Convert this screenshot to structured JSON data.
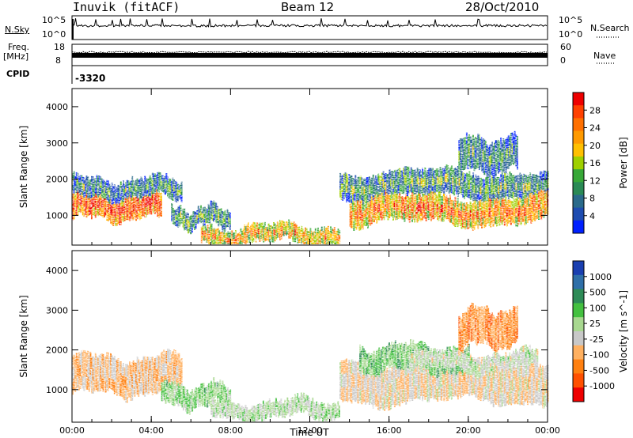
{
  "header": {
    "station": "Inuvik (fitACF)",
    "beam": "Beam 12",
    "date": "28/Oct/2010"
  },
  "strip_panels": {
    "nsky_label": "N.Sky",
    "nsky_ticks": [
      "10^5",
      "10^0"
    ],
    "nsearch_label": "N.Search",
    "freq_label_line1": "Freq.",
    "freq_label_line2": "[MHz]",
    "freq_ticks": [
      "18",
      "8"
    ],
    "nave_label": "Nave",
    "nave_ticks": [
      "60",
      "0"
    ],
    "cpid_label": "CPID",
    "cpid_value": "-3320"
  },
  "x_axis_title": "Time UT",
  "chart_data": [
    {
      "type": "heatmap",
      "quantity": "Power",
      "ylabel": "Slant Range [km]",
      "xlim": [
        "00:00",
        "00:00"
      ],
      "x_tick_labels": [
        "00:00",
        "04:00",
        "08:00",
        "12:00",
        "16:00",
        "20:00",
        "00:00"
      ],
      "ylim": [
        180,
        4500
      ],
      "y_tick_labels": [
        "1000",
        "2000",
        "3000",
        "4000"
      ],
      "colorbar": {
        "label": "Power [dB]",
        "ticks": [
          "28",
          "24",
          "20",
          "16",
          "12",
          "8",
          "4"
        ],
        "colors": [
          "#ee0000",
          "#ff4000",
          "#ff7000",
          "#ff9a00",
          "#ffc000",
          "#9fd000",
          "#38a838",
          "#2a8a55",
          "#2a6a8a",
          "#1e4cb0",
          "#0020ff"
        ]
      },
      "regions": [
        {
          "t_start": 0.0,
          "t_end": 4.5,
          "r_low": 900,
          "r_high": 1600,
          "level_db": 28
        },
        {
          "t_start": 0.0,
          "t_end": 5.5,
          "r_low": 1500,
          "r_high": 2000,
          "level_db": 10
        },
        {
          "t_start": 5.0,
          "t_end": 8.0,
          "r_low": 700,
          "r_high": 1200,
          "level_db": 12
        },
        {
          "t_start": 6.5,
          "t_end": 13.5,
          "r_low": 250,
          "r_high": 700,
          "level_db": 22
        },
        {
          "t_start": 13.5,
          "t_end": 24.0,
          "r_low": 1500,
          "r_high": 2200,
          "level_db": 12
        },
        {
          "t_start": 14.0,
          "t_end": 24.0,
          "r_low": 800,
          "r_high": 1500,
          "level_db": 24
        },
        {
          "t_start": 19.5,
          "t_end": 22.5,
          "r_low": 2200,
          "r_high": 3100,
          "level_db": 10
        }
      ]
    },
    {
      "type": "heatmap",
      "quantity": "Velocity",
      "ylabel": "Slant Range [km]",
      "xlim": [
        "00:00",
        "00:00"
      ],
      "x_tick_labels": [
        "00:00",
        "04:00",
        "08:00",
        "12:00",
        "16:00",
        "20:00",
        "00:00"
      ],
      "ylim": [
        180,
        4500
      ],
      "y_tick_labels": [
        "1000",
        "2000",
        "3000",
        "4000"
      ],
      "colorbar": {
        "label": "Velocity [m s^-1]",
        "ticks": [
          "1000",
          "500",
          "100",
          "25",
          "-25",
          "-100",
          "-500",
          "-1000"
        ],
        "colors": [
          "#1a3fb0",
          "#2f6fa8",
          "#2e8b57",
          "#44c040",
          "#a8d890",
          "#c8c8c8",
          "#ffb060",
          "#ff8010",
          "#ff5000",
          "#ee0000"
        ]
      },
      "regions": [
        {
          "t_start": 0.0,
          "t_end": 5.5,
          "r_low": 900,
          "r_high": 1800,
          "velocity_ms": -300
        },
        {
          "t_start": 4.5,
          "t_end": 8.0,
          "r_low": 600,
          "r_high": 1100,
          "velocity_ms": 200
        },
        {
          "t_start": 7.0,
          "t_end": 13.5,
          "r_low": 300,
          "r_high": 700,
          "velocity_ms": 50
        },
        {
          "t_start": 13.5,
          "t_end": 24.0,
          "r_low": 700,
          "r_high": 1700,
          "velocity_ms": -200
        },
        {
          "t_start": 14.5,
          "t_end": 20.0,
          "r_low": 1500,
          "r_high": 2100,
          "velocity_ms": 300
        },
        {
          "t_start": 19.5,
          "t_end": 22.5,
          "r_low": 2100,
          "r_high": 3000,
          "velocity_ms": -500
        },
        {
          "t_start": 17.0,
          "t_end": 23.5,
          "r_low": 1500,
          "r_high": 1900,
          "velocity_ms": 0
        }
      ]
    }
  ]
}
